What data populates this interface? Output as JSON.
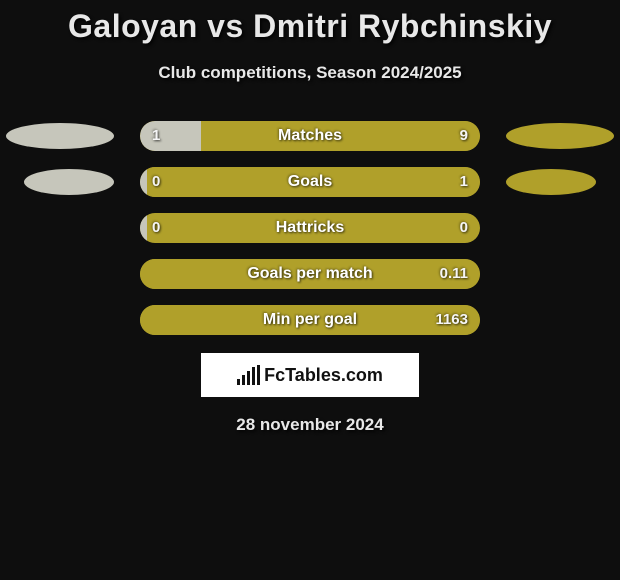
{
  "title": "Galoyan vs Dmitri Rybchinskiy",
  "subtitle": "Club competitions, Season 2024/2025",
  "date": "28 november 2024",
  "logo_text": "FcTables.com",
  "colors": {
    "background": "#0e0e0e",
    "player1": "#c6c6bb",
    "player2": "#b0a02a",
    "bar_track": "#b0a02a",
    "text_light": "#f5f5f5"
  },
  "stats": [
    {
      "label": "Matches",
      "left_val": "1",
      "right_val": "9",
      "left_pct": 18,
      "right_pct": 82,
      "show_ellipses": true
    },
    {
      "label": "Goals",
      "left_val": "0",
      "right_val": "1",
      "left_pct": 2,
      "right_pct": 98,
      "show_ellipses": true
    },
    {
      "label": "Hattricks",
      "left_val": "0",
      "right_val": "0",
      "left_pct": 2,
      "right_pct": 0,
      "show_ellipses": false
    },
    {
      "label": "Goals per match",
      "left_val": "",
      "right_val": "0.11",
      "left_pct": 0,
      "right_pct": 100,
      "show_ellipses": false
    },
    {
      "label": "Min per goal",
      "left_val": "",
      "right_val": "1163",
      "left_pct": 0,
      "right_pct": 100,
      "show_ellipses": false
    }
  ]
}
